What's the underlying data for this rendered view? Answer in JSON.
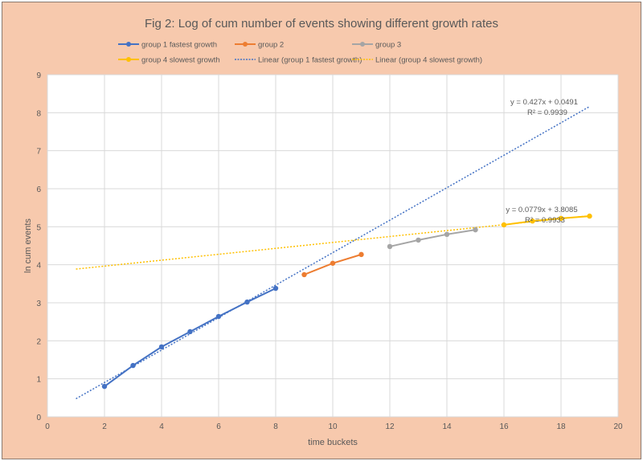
{
  "chart_data": {
    "type": "line",
    "title": "Fig 2: Log of cum number of events showing different growth rates",
    "xlabel": "time buckets",
    "ylabel": "ln cum events",
    "xlim": [
      0,
      20
    ],
    "ylim": [
      0,
      9
    ],
    "xticks": [
      0,
      2,
      4,
      6,
      8,
      10,
      12,
      14,
      16,
      18,
      20
    ],
    "yticks": [
      0,
      1,
      2,
      3,
      4,
      5,
      6,
      7,
      8,
      9
    ],
    "grid": true,
    "legend_position": "top",
    "series": [
      {
        "name": "group 1 fastest growth",
        "color": "#4472c4",
        "x": [
          2,
          3,
          4,
          5,
          6,
          7,
          8
        ],
        "y": [
          0.8,
          1.35,
          1.84,
          2.24,
          2.64,
          3.02,
          3.38
        ]
      },
      {
        "name": "group 2",
        "color": "#ed7d31",
        "x": [
          9,
          10,
          11
        ],
        "y": [
          3.74,
          4.04,
          4.27
        ]
      },
      {
        "name": "group 3",
        "color": "#a5a5a5",
        "x": [
          12,
          13,
          14,
          15
        ],
        "y": [
          4.48,
          4.65,
          4.8,
          4.92
        ]
      },
      {
        "name": "group 4 slowest growth",
        "color": "#ffc000",
        "x": [
          16,
          17,
          18,
          19
        ],
        "y": [
          5.05,
          5.15,
          5.22,
          5.28
        ]
      }
    ],
    "trendlines": [
      {
        "name": "Linear (group 1 fastest growth)",
        "color": "#4472c4",
        "slope": 0.427,
        "intercept": 0.0491,
        "x_range": [
          1,
          19
        ],
        "equation": "y = 0.427x + 0.0491",
        "r2": "R² = 0.9939"
      },
      {
        "name": "Linear (group 4 slowest growth)",
        "color": "#ffc000",
        "slope": 0.0779,
        "intercept": 3.8085,
        "x_range": [
          1,
          19
        ],
        "equation": "y = 0.0779x + 3.8085",
        "r2": "R² = 0.9933"
      }
    ]
  }
}
